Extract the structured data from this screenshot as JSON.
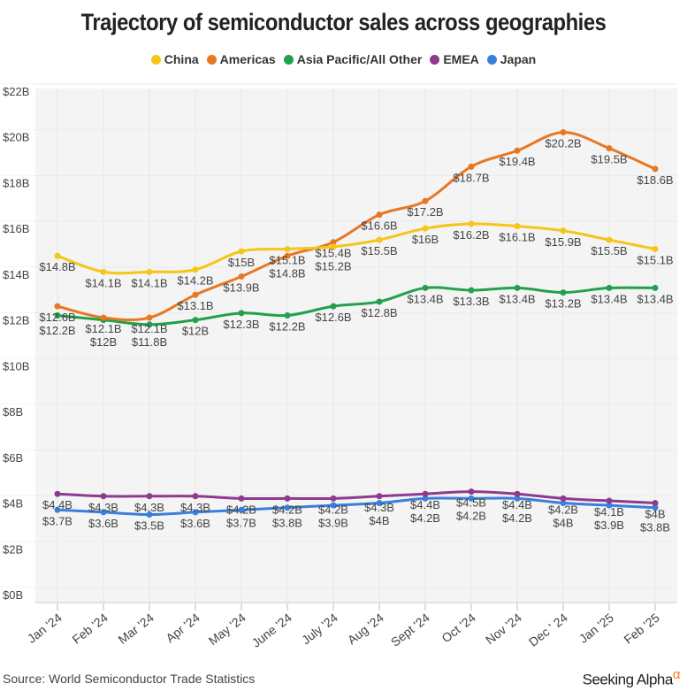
{
  "chart_data": {
    "type": "line",
    "title": "Trajectory of semiconductor sales across geographies",
    "categories": [
      "Jan '24",
      "Feb '24",
      "Mar '24",
      "Apr '24",
      "May '24",
      "June '24",
      "July '24",
      "Aug '24",
      "Sept '24",
      "Oct '24",
      "Nov '24",
      "Dec ' 24",
      "Jan '25",
      "Feb '25"
    ],
    "ylim": [
      0,
      22
    ],
    "yticks": [
      "$0B",
      "$2B",
      "$4B",
      "$6B",
      "$8B",
      "$10B",
      "$12B",
      "$14B",
      "$16B",
      "$18B",
      "$20B",
      "$22B"
    ],
    "grid": true,
    "legend_position": "top",
    "series": [
      {
        "name": "China",
        "color": "#f5c518",
        "values": [
          14.8,
          14.1,
          14.1,
          14.2,
          15,
          15.1,
          15.2,
          15.5,
          16,
          16.2,
          16.1,
          15.9,
          15.5,
          15.1
        ]
      },
      {
        "name": "Americas",
        "color": "#e87722",
        "values": [
          12.6,
          12.1,
          12.1,
          13.1,
          13.9,
          14.8,
          15.4,
          16.6,
          17.2,
          18.7,
          19.4,
          20.2,
          19.5,
          18.6
        ]
      },
      {
        "name": "Asia Pacific/All Other",
        "color": "#22a04b",
        "values": [
          12.2,
          12,
          11.8,
          12,
          12.3,
          12.2,
          12.6,
          12.8,
          13.4,
          13.3,
          13.4,
          13.2,
          13.4,
          13.4
        ]
      },
      {
        "name": "EMEA",
        "color": "#8e3b8e",
        "values": [
          4.4,
          4.3,
          4.3,
          4.3,
          4.2,
          4.2,
          4.2,
          4.3,
          4.4,
          4.5,
          4.4,
          4.2,
          4.1,
          4
        ]
      },
      {
        "name": "Japan",
        "color": "#3a7fdc",
        "values": [
          3.7,
          3.6,
          3.5,
          3.6,
          3.7,
          3.8,
          3.9,
          4,
          4.2,
          4.2,
          4.2,
          4,
          3.9,
          3.8
        ]
      }
    ]
  },
  "footer": {
    "source": "Source: World Semiconductor Trade Statistics",
    "logo": "Seeking Alpha",
    "logo_symbol": "α"
  }
}
